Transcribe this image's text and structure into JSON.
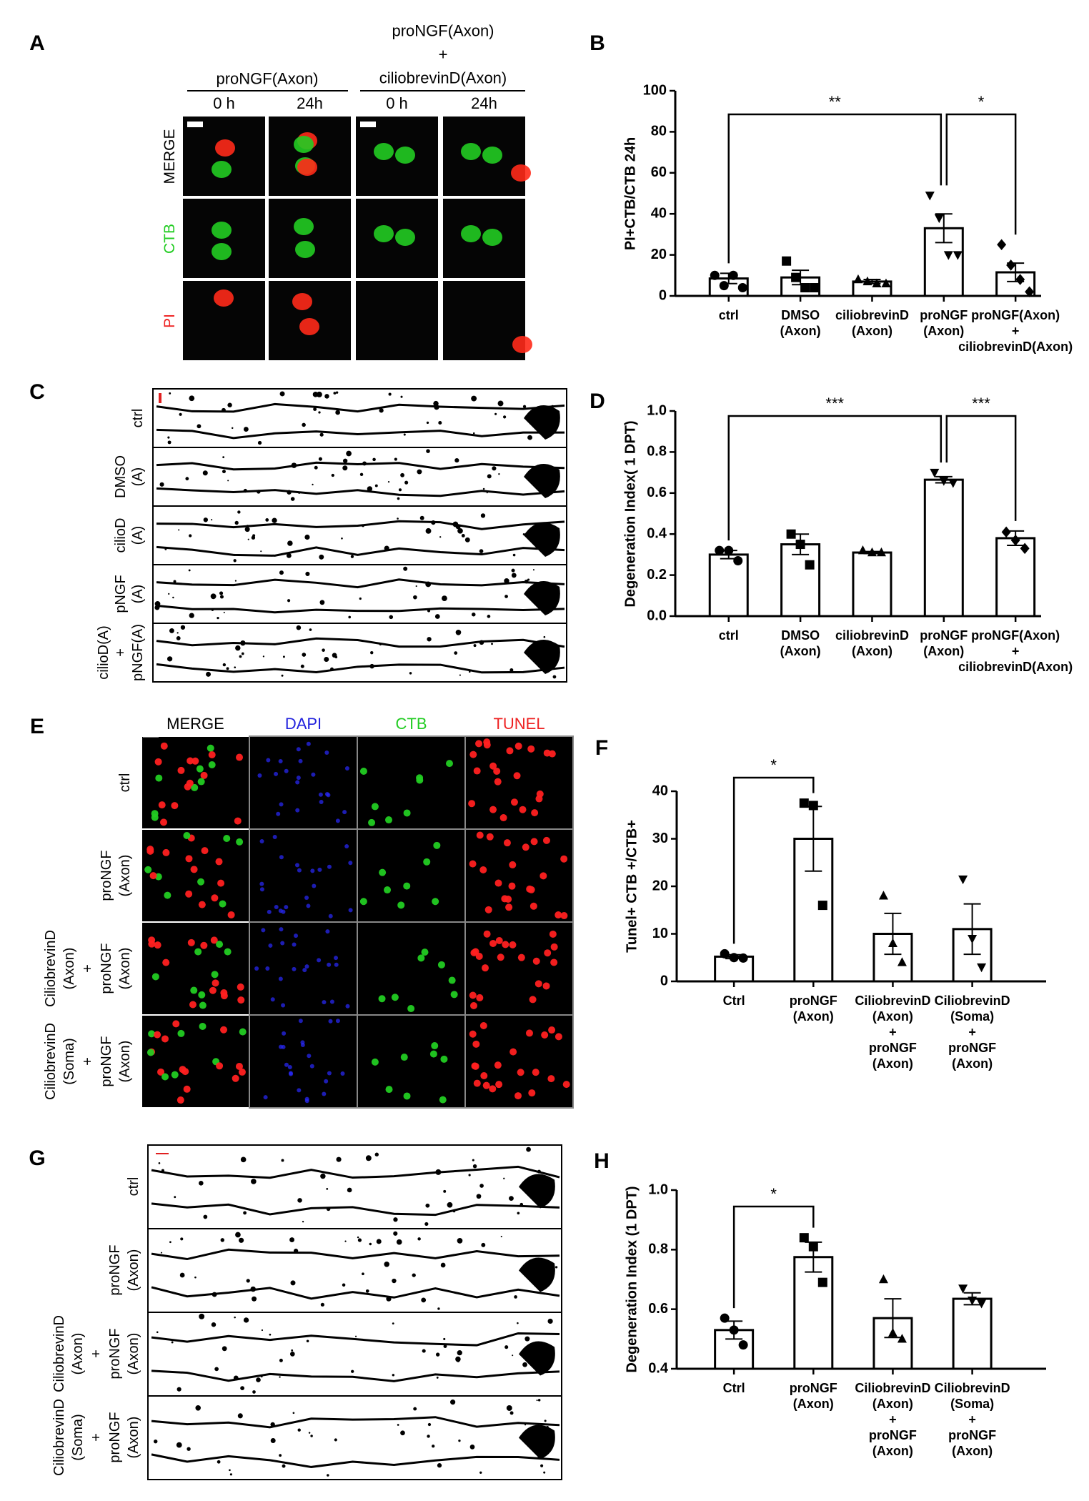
{
  "panels": {
    "A": {
      "letter": "A",
      "groups": [
        "proNGF(Axon)",
        "proNGF(Axon)\n+\nciliobrevinD(Axon)"
      ],
      "times": [
        "0 h",
        "24h",
        "0 h",
        "24h"
      ],
      "rows": [
        "MERGE",
        "CTB",
        "PI"
      ],
      "row_colors": [
        "#000000",
        "#22cc22",
        "#ee2222"
      ]
    },
    "C": {
      "letter": "C",
      "rows": [
        "ctrl",
        "DMSO\n(A)",
        "cilioD\n(A)",
        "pNGF\n(A)",
        "cilioD(A)\n+\npNGF(A)"
      ]
    },
    "E": {
      "letter": "E",
      "columns": [
        "MERGE",
        "DAPI",
        "CTB",
        "TUNEL"
      ],
      "column_colors": [
        "#000000",
        "#2222dd",
        "#22cc22",
        "#ee2222"
      ],
      "rows": [
        "ctrl",
        "proNGF\n(Axon)",
        "CiliobrevinD\n(Axon)\n+\nproNGF\n(Axon)",
        "CiliobrevinD\n(Soma)\n+\nproNGF\n(Axon)"
      ]
    },
    "G": {
      "letter": "G",
      "rows": [
        "ctrl",
        "proNGF\n(Axon)",
        "CiliobrevinD\n(Axon)\n+\nproNGF\n(Axon)",
        "CiliobrevinD\n(Soma)\n+\nproNGF\n(Axon)"
      ]
    }
  },
  "chart_data": [
    {
      "letter": "B",
      "type": "bar",
      "ylabel": "PI+CTB/CTB 24h",
      "categories": [
        "ctrl",
        "DMSO\n(Axon)",
        "ciliobrevinD\n(Axon)",
        "proNGF\n(Axon)",
        "proNGF(Axon)\n+\nciliobrevinD(Axon)"
      ],
      "values": [
        8.5,
        9,
        7,
        33,
        11.5
      ],
      "errors": [
        2.5,
        3.5,
        1,
        7,
        4.5
      ],
      "points": [
        [
          10,
          5,
          10,
          4
        ],
        [
          17,
          9,
          4,
          4
        ],
        [
          8,
          7,
          6,
          6
        ],
        [
          49,
          38,
          20,
          20
        ],
        [
          25,
          15,
          8,
          2
        ]
      ],
      "markers": [
        "circle",
        "square",
        "triangle",
        "triangle-down",
        "diamond"
      ],
      "color": "#ffffff",
      "ylim": [
        0,
        100
      ],
      "yticks": [
        0,
        20,
        40,
        60,
        80,
        100
      ],
      "significance": [
        {
          "text": "**",
          "between": [
            0,
            3
          ]
        },
        {
          "text": "*",
          "between": [
            3,
            4
          ]
        }
      ]
    },
    {
      "letter": "D",
      "type": "bar",
      "ylabel": "Degeneration Index( 1 DPT)",
      "categories": [
        "ctrl",
        "DMSO\n(Axon)",
        "ciliobrevinD\n(Axon)",
        "proNGF\n(Axon)",
        "proNGF(Axon)\n+\nciliobrevinD(Axon)"
      ],
      "values": [
        0.3,
        0.35,
        0.31,
        0.665,
        0.38
      ],
      "errors": [
        0.02,
        0.05,
        0.005,
        0.015,
        0.035
      ],
      "points": [
        [
          0.32,
          0.32,
          0.27
        ],
        [
          0.4,
          0.35,
          0.25
        ],
        [
          0.32,
          0.31,
          0.31
        ],
        [
          0.7,
          0.66,
          0.65
        ],
        [
          0.41,
          0.37,
          0.33
        ]
      ],
      "markers": [
        "circle",
        "square",
        "triangle",
        "triangle-down",
        "diamond"
      ],
      "color": "#ffffff",
      "ylim": [
        0,
        1
      ],
      "yticks": [
        {
          "value": 0,
          "label": "0.0"
        },
        0.2,
        0.4,
        0.6,
        0.8,
        {
          "value": 1,
          "label": "1.0"
        }
      ],
      "significance": [
        {
          "text": "***",
          "between": [
            0,
            3
          ]
        },
        {
          "text": "***",
          "between": [
            3,
            4
          ]
        }
      ]
    },
    {
      "letter": "F",
      "type": "bar",
      "ylabel": "Tunel+ CTB +/CTB+",
      "categories": [
        "Ctrl",
        "proNGF\n(Axon)",
        "CiliobrevinD\n(Axon)\n+\nproNGF\n(Axon)",
        "CiliobrevinD\n(Soma)\n+\nproNGF\n(Axon)"
      ],
      "values": [
        5.2,
        30,
        10,
        11
      ],
      "errors": [
        0.4,
        6.8,
        4.3,
        5.3
      ],
      "points": [
        [
          5.8,
          5,
          4.9
        ],
        [
          37.5,
          37,
          16
        ],
        [
          18,
          8,
          4
        ],
        [
          21.5,
          9,
          3
        ]
      ],
      "markers": [
        "circle",
        "square",
        "triangle",
        "triangle-down"
      ],
      "color": "#ffffff",
      "ylim": [
        0,
        40
      ],
      "yticks": [
        0,
        10,
        20,
        30,
        40
      ],
      "significance": [
        {
          "text": "*",
          "between": [
            0,
            1
          ]
        }
      ]
    },
    {
      "letter": "H",
      "type": "bar",
      "ylabel": "Degeneration Index (1 DPT)",
      "categories": [
        "Ctrl",
        "proNGF\n(Axon)",
        "CiliobrevinD\n(Axon)\n+\nproNGF\n(Axon)",
        "CiliobrevinD\n(Soma)\n+\nproNGF\n(Axon)"
      ],
      "values": [
        0.53,
        0.775,
        0.57,
        0.635
      ],
      "errors": [
        0.03,
        0.05,
        0.065,
        0.02
      ],
      "points": [
        [
          0.57,
          0.53,
          0.48
        ],
        [
          0.84,
          0.81,
          0.69
        ],
        [
          0.7,
          0.52,
          0.5
        ],
        [
          0.67,
          0.63,
          0.62
        ]
      ],
      "markers": [
        "circle",
        "square",
        "triangle",
        "triangle-down"
      ],
      "color": "#ffffff",
      "ylim": [
        0.4,
        1
      ],
      "yticks": [
        0.4,
        0.6,
        0.8,
        {
          "value": 1,
          "label": "1.0"
        }
      ],
      "significance": [
        {
          "text": "*",
          "between": [
            0,
            1
          ]
        }
      ]
    }
  ]
}
